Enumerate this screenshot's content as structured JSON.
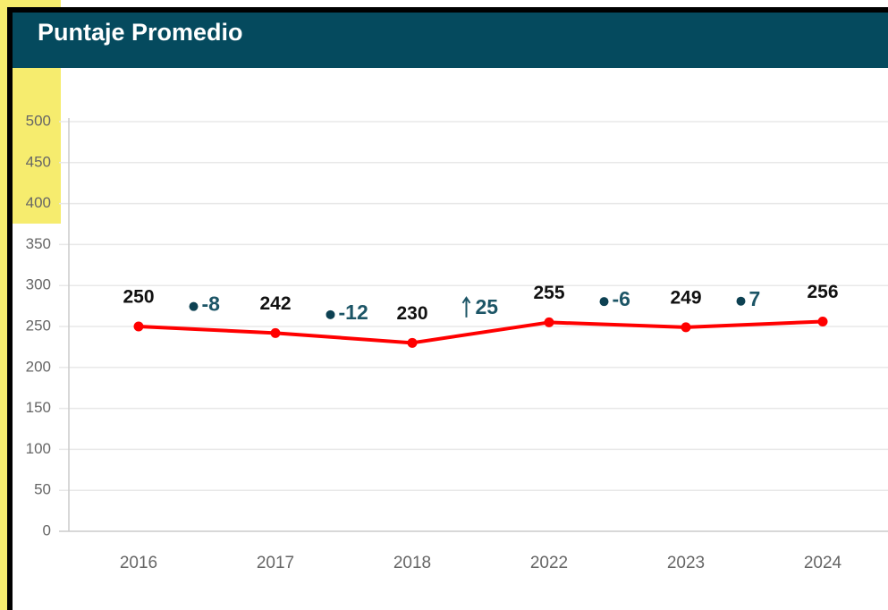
{
  "chart_data": {
    "type": "line",
    "title": "Puntaje Promedio",
    "categories": [
      "2016",
      "2017",
      "2018",
      "2022",
      "2023",
      "2024"
    ],
    "series": [
      {
        "name": null,
        "color": "#ff0000",
        "values": [
          250,
          242,
          230,
          255,
          249,
          256
        ]
      }
    ],
    "changes": [
      {
        "value": -8,
        "marker": "dot"
      },
      {
        "value": -12,
        "marker": "dot"
      },
      {
        "value": 25,
        "marker": "arrow"
      },
      {
        "value": -6,
        "marker": "dot"
      },
      {
        "value": 7,
        "marker": "dot"
      }
    ],
    "ylim": [
      0,
      500
    ],
    "yticks": [
      0,
      50,
      100,
      150,
      200,
      250,
      300,
      350,
      400,
      450,
      500
    ],
    "grid": true
  }
}
